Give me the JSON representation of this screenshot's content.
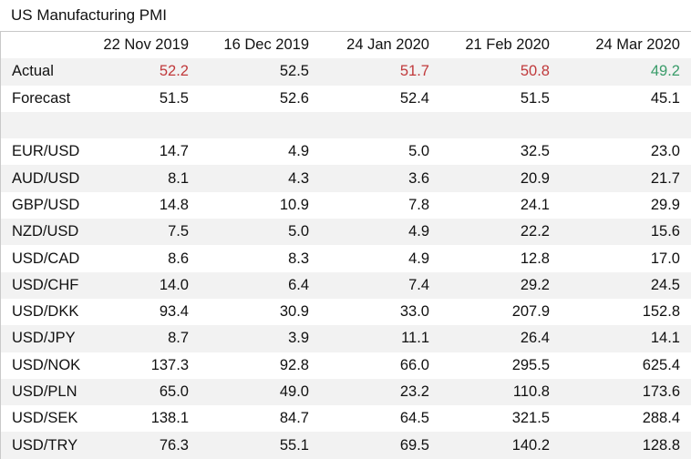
{
  "title": "US Manufacturing PMI",
  "columns": [
    "22 Nov 2019",
    "16 Dec 2019",
    "24 Jan 2020",
    "21 Feb 2020",
    "24 Mar 2020"
  ],
  "colors": {
    "up": "#c0393b",
    "down": "#3a9c6a",
    "stripe": "#f2f2f2"
  },
  "actual": {
    "label": "Actual",
    "values": [
      "52.2",
      "52.5",
      "51.7",
      "50.8",
      "49.2"
    ],
    "tone": [
      "red",
      "",
      "red",
      "red",
      "green"
    ]
  },
  "forecast": {
    "label": "Forecast",
    "values": [
      "51.5",
      "52.6",
      "52.4",
      "51.5",
      "45.1"
    ]
  },
  "pairs": [
    {
      "label": "EUR/USD",
      "values": [
        "14.7",
        "4.9",
        "5.0",
        "32.5",
        "23.0"
      ]
    },
    {
      "label": "AUD/USD",
      "values": [
        "8.1",
        "4.3",
        "3.6",
        "20.9",
        "21.7"
      ]
    },
    {
      "label": "GBP/USD",
      "values": [
        "14.8",
        "10.9",
        "7.8",
        "24.1",
        "29.9"
      ]
    },
    {
      "label": "NZD/USD",
      "values": [
        "7.5",
        "5.0",
        "4.9",
        "22.2",
        "15.6"
      ]
    },
    {
      "label": "USD/CAD",
      "values": [
        "8.6",
        "8.3",
        "4.9",
        "12.8",
        "17.0"
      ]
    },
    {
      "label": "USD/CHF",
      "values": [
        "14.0",
        "6.4",
        "7.4",
        "29.2",
        "24.5"
      ]
    },
    {
      "label": "USD/DKK",
      "values": [
        "93.4",
        "30.9",
        "33.0",
        "207.9",
        "152.8"
      ]
    },
    {
      "label": "USD/JPY",
      "values": [
        "8.7",
        "3.9",
        "11.1",
        "26.4",
        "14.1"
      ]
    },
    {
      "label": "USD/NOK",
      "values": [
        "137.3",
        "92.8",
        "66.0",
        "295.5",
        "625.4"
      ]
    },
    {
      "label": "USD/PLN",
      "values": [
        "65.0",
        "49.0",
        "23.2",
        "110.8",
        "173.6"
      ]
    },
    {
      "label": "USD/SEK",
      "values": [
        "138.1",
        "84.7",
        "64.5",
        "321.5",
        "288.4"
      ]
    },
    {
      "label": "USD/TRY",
      "values": [
        "76.3",
        "55.1",
        "69.5",
        "140.2",
        "128.8"
      ]
    }
  ]
}
